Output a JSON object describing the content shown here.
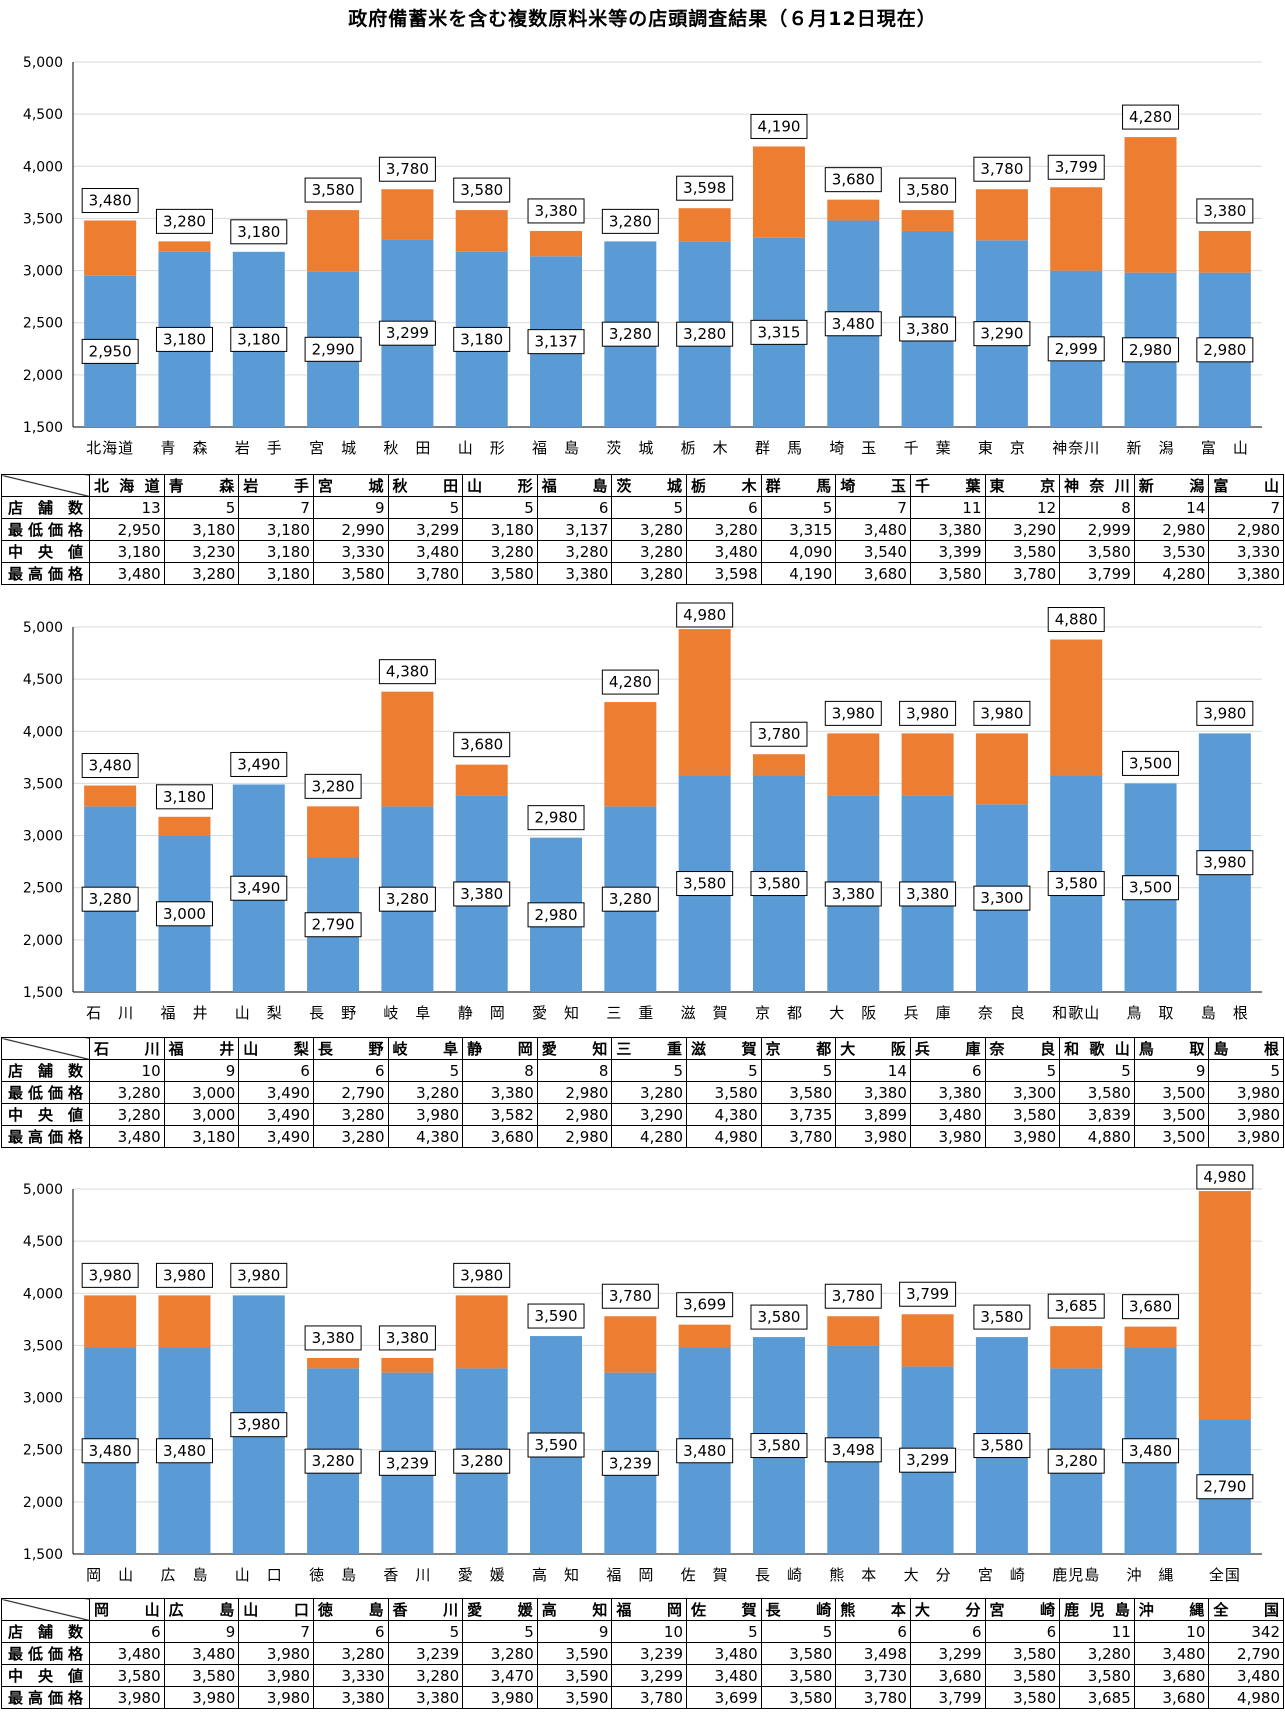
{
  "title": "政府備蓄米を含む複数原料米等の店頭調査結果（６月12日現在）",
  "colors": {
    "low": "#5B9BD5",
    "high": "#ED7D31"
  },
  "row_labels": [
    "店舗数",
    "最低価格",
    "中央値",
    "最高価格"
  ],
  "chart_data": [
    {
      "type": "bar",
      "title": "",
      "xlabel": "",
      "ylabel": "",
      "ylim": [
        1500,
        5000
      ],
      "yticks": [
        "1,500",
        "2,000",
        "2,500",
        "3,000",
        "3,500",
        "4,000",
        "4,500",
        "5,000"
      ],
      "categories": [
        "北海道",
        "青　森",
        "岩　手",
        "宮　城",
        "秋　田",
        "山　形",
        "福　島",
        "茨　城",
        "栃　木",
        "群　馬",
        "埼　玉",
        "千　葉",
        "東　京",
        "神奈川",
        "新　潟",
        "富　山"
      ],
      "tick_labels": [
        "北海道",
        "青　森",
        "岩　手",
        "宮　城",
        "秋　田",
        "山　形",
        "福　島",
        "茨　城",
        "栃　木",
        "群　馬",
        "埼　玉",
        "千　葉",
        "東　京",
        "神奈川",
        "新　潟",
        "富　山"
      ],
      "stores": [
        13,
        5,
        7,
        9,
        5,
        5,
        6,
        5,
        6,
        5,
        7,
        11,
        12,
        8,
        14,
        7
      ],
      "min": [
        2950,
        3180,
        3180,
        2990,
        3299,
        3180,
        3137,
        3280,
        3280,
        3315,
        3480,
        3380,
        3290,
        2999,
        2980,
        2980
      ],
      "median": [
        3180,
        3230,
        3180,
        3330,
        3480,
        3280,
        3280,
        3280,
        3480,
        4090,
        3540,
        3399,
        3580,
        3580,
        3530,
        3330
      ],
      "max": [
        3480,
        3280,
        3180,
        3580,
        3780,
        3580,
        3380,
        3280,
        3598,
        4190,
        3680,
        3580,
        3780,
        3799,
        4280,
        3380
      ],
      "min_labels": [
        "2,950",
        "3,180",
        "3,180",
        "2,990",
        "3,299",
        "3,180",
        "3,137",
        "3,280",
        "3,280",
        "3,315",
        "3,480",
        "3,380",
        "3,290",
        "2,999",
        "2,980",
        "2,980"
      ],
      "max_labels": [
        "3,480",
        "3,280",
        "3,180",
        "3,580",
        "3,780",
        "3,580",
        "3,380",
        "3,280",
        "3,598",
        "4,190",
        "3,680",
        "3,580",
        "3,780",
        "3,799",
        "4,280",
        "3,380"
      ],
      "table": {
        "stores": [
          "13",
          "5",
          "7",
          "9",
          "5",
          "5",
          "6",
          "5",
          "6",
          "5",
          "7",
          "11",
          "12",
          "8",
          "14",
          "7"
        ],
        "min": [
          "2,950",
          "3,180",
          "3,180",
          "2,990",
          "3,299",
          "3,180",
          "3,137",
          "3,280",
          "3,280",
          "3,315",
          "3,480",
          "3,380",
          "3,290",
          "2,999",
          "2,980",
          "2,980"
        ],
        "median": [
          "3,180",
          "3,230",
          "3,180",
          "3,330",
          "3,480",
          "3,280",
          "3,280",
          "3,280",
          "3,480",
          "4,090",
          "3,540",
          "3,399",
          "3,580",
          "3,580",
          "3,530",
          "3,330"
        ],
        "max": [
          "3,480",
          "3,280",
          "3,180",
          "3,580",
          "3,780",
          "3,580",
          "3,380",
          "3,280",
          "3,598",
          "4,190",
          "3,680",
          "3,580",
          "3,780",
          "3,799",
          "4,280",
          "3,380"
        ]
      }
    },
    {
      "type": "bar",
      "title": "",
      "xlabel": "",
      "ylabel": "",
      "ylim": [
        1500,
        5000
      ],
      "yticks": [
        "1,500",
        "2,000",
        "2,500",
        "3,000",
        "3,500",
        "4,000",
        "4,500",
        "5,000"
      ],
      "categories": [
        "石　川",
        "福　井",
        "山　梨",
        "長　野",
        "岐　阜",
        "静　岡",
        "愛　知",
        "三　重",
        "滋　賀",
        "京　都",
        "大　阪",
        "兵　庫",
        "奈　良",
        "和歌山",
        "鳥　取",
        "島　根"
      ],
      "tick_labels": [
        "石　川",
        "福　井",
        "山　梨",
        "長　野",
        "岐　阜",
        "静　岡",
        "愛　知",
        "三　重",
        "滋　賀",
        "京　都",
        "大　阪",
        "兵　庫",
        "奈　良",
        "和歌山",
        "鳥　取",
        "島　根"
      ],
      "stores": [
        10,
        9,
        6,
        6,
        5,
        8,
        8,
        5,
        5,
        5,
        14,
        6,
        5,
        5,
        9,
        5
      ],
      "min": [
        3280,
        3000,
        3490,
        2790,
        3280,
        3380,
        2980,
        3280,
        3580,
        3580,
        3380,
        3380,
        3300,
        3580,
        3500,
        3980
      ],
      "median": [
        3280,
        3000,
        3490,
        3280,
        3980,
        3582,
        2980,
        3290,
        4380,
        3735,
        3899,
        3480,
        3580,
        3839,
        3500,
        3980
      ],
      "max": [
        3480,
        3180,
        3490,
        3280,
        4380,
        3680,
        2980,
        4280,
        4980,
        3780,
        3980,
        3980,
        3980,
        4880,
        3500,
        3980
      ],
      "min_labels": [
        "3,280",
        "3,000",
        "3,490",
        "2,790",
        "3,280",
        "3,380",
        "2,980",
        "3,280",
        "3,580",
        "3,580",
        "3,380",
        "3,380",
        "3,300",
        "3,580",
        "3,500",
        "3,980"
      ],
      "max_labels": [
        "3,480",
        "3,180",
        "3,490",
        "3,280",
        "4,380",
        "3,680",
        "2,980",
        "4,280",
        "4,980",
        "3,780",
        "3,980",
        "3,980",
        "3,980",
        "4,880",
        "3,500",
        "3,980"
      ],
      "table": {
        "stores": [
          "10",
          "9",
          "6",
          "6",
          "5",
          "8",
          "8",
          "5",
          "5",
          "5",
          "14",
          "6",
          "5",
          "5",
          "9",
          "5"
        ],
        "min": [
          "3,280",
          "3,000",
          "3,490",
          "2,790",
          "3,280",
          "3,380",
          "2,980",
          "3,280",
          "3,580",
          "3,580",
          "3,380",
          "3,380",
          "3,300",
          "3,580",
          "3,500",
          "3,980"
        ],
        "median": [
          "3,280",
          "3,000",
          "3,490",
          "3,280",
          "3,980",
          "3,582",
          "2,980",
          "3,290",
          "4,380",
          "3,735",
          "3,899",
          "3,480",
          "3,580",
          "3,839",
          "3,500",
          "3,980"
        ],
        "max": [
          "3,480",
          "3,180",
          "3,490",
          "3,280",
          "4,380",
          "3,680",
          "2,980",
          "4,280",
          "4,980",
          "3,780",
          "3,980",
          "3,980",
          "3,980",
          "4,880",
          "3,500",
          "3,980"
        ]
      }
    },
    {
      "type": "bar",
      "title": "",
      "xlabel": "",
      "ylabel": "",
      "ylim": [
        1500,
        5000
      ],
      "yticks": [
        "1,500",
        "2,000",
        "2,500",
        "3,000",
        "3,500",
        "4,000",
        "4,500",
        "5,000"
      ],
      "categories": [
        "岡　山",
        "広　島",
        "山　口",
        "徳　島",
        "香　川",
        "愛　媛",
        "高　知",
        "福　岡",
        "佐　賀",
        "長　崎",
        "熊　本",
        "大　分",
        "宮　崎",
        "鹿児島",
        "沖　縄",
        "全国"
      ],
      "tick_labels": [
        "岡　山",
        "広　島",
        "山　口",
        "徳　島",
        "香　川",
        "愛　媛",
        "高　知",
        "福　岡",
        "佐　賀",
        "長　崎",
        "熊　本",
        "大　分",
        "宮　崎",
        "鹿児島",
        "沖　縄",
        "全国"
      ],
      "stores": [
        6,
        9,
        7,
        6,
        5,
        5,
        9,
        10,
        5,
        5,
        6,
        6,
        6,
        11,
        10,
        342
      ],
      "min": [
        3480,
        3480,
        3980,
        3280,
        3239,
        3280,
        3590,
        3239,
        3480,
        3580,
        3498,
        3299,
        3580,
        3280,
        3480,
        2790
      ],
      "median": [
        3580,
        3580,
        3980,
        3330,
        3280,
        3470,
        3590,
        3299,
        3480,
        3580,
        3730,
        3680,
        3580,
        3580,
        3680,
        3480
      ],
      "max": [
        3980,
        3980,
        3980,
        3380,
        3380,
        3980,
        3590,
        3780,
        3699,
        3580,
        3780,
        3799,
        3580,
        3685,
        3680,
        4980
      ],
      "min_labels": [
        "3,480",
        "3,480",
        "3,980",
        "3,280",
        "3,239",
        "3,280",
        "3,590",
        "3,239",
        "3,480",
        "3,580",
        "3,498",
        "3,299",
        "3,580",
        "3,280",
        "3,480",
        "2,790"
      ],
      "max_labels": [
        "3,980",
        "3,980",
        "3,980",
        "3,380",
        "3,380",
        "3,980",
        "3,590",
        "3,780",
        "3,699",
        "3,580",
        "3,780",
        "3,799",
        "3,580",
        "3,685",
        "3,680",
        "4,980"
      ],
      "table": {
        "stores": [
          "6",
          "9",
          "7",
          "6",
          "5",
          "5",
          "9",
          "10",
          "5",
          "5",
          "6",
          "6",
          "6",
          "11",
          "10",
          "342"
        ],
        "min": [
          "3,480",
          "3,480",
          "3,980",
          "3,280",
          "3,239",
          "3,280",
          "3,590",
          "3,239",
          "3,480",
          "3,580",
          "3,498",
          "3,299",
          "3,580",
          "3,280",
          "3,480",
          "2,790"
        ],
        "median": [
          "3,580",
          "3,580",
          "3,980",
          "3,330",
          "3,280",
          "3,470",
          "3,590",
          "3,299",
          "3,480",
          "3,580",
          "3,730",
          "3,680",
          "3,580",
          "3,580",
          "3,680",
          "3,480"
        ],
        "max": [
          "3,980",
          "3,980",
          "3,980",
          "3,380",
          "3,380",
          "3,980",
          "3,590",
          "3,780",
          "3,699",
          "3,580",
          "3,780",
          "3,799",
          "3,580",
          "3,685",
          "3,680",
          "4,980"
        ]
      }
    }
  ]
}
